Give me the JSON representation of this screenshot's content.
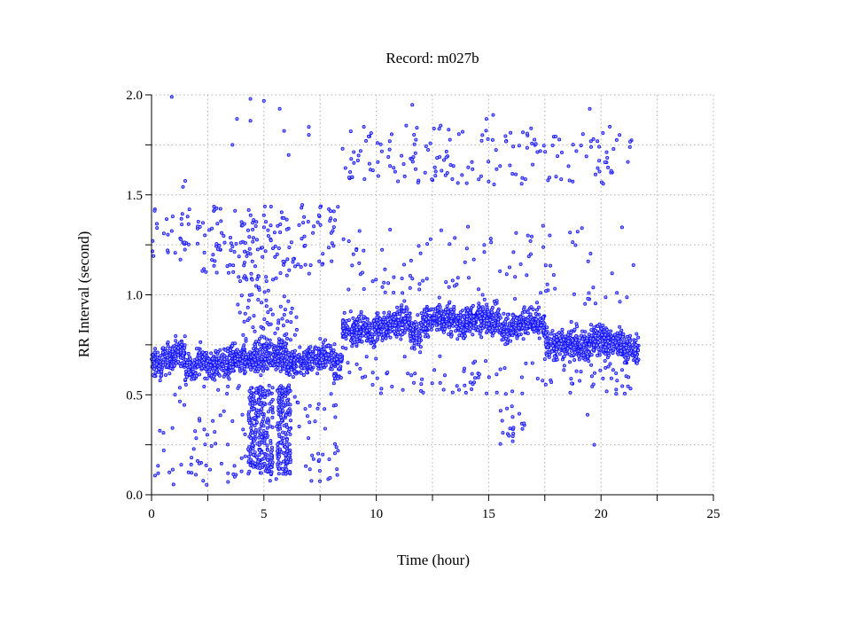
{
  "chart_data": {
    "type": "scatter",
    "title": "Record:  m027b",
    "xlabel": "Time (hour)",
    "ylabel": "RR Interval (second)",
    "xlim": [
      0,
      25
    ],
    "ylim": [
      0,
      2.0
    ],
    "xticks": [
      0,
      5,
      10,
      15,
      20,
      25
    ],
    "xtick_labels": [
      "0",
      "5",
      "10",
      "15",
      "20",
      "25"
    ],
    "xminor_ticks": [
      2.5,
      7.5,
      12.5,
      17.5,
      22.5
    ],
    "yticks": [
      0,
      0.5,
      1.0,
      1.5,
      2.0
    ],
    "ytick_labels": [
      "0.0",
      "0.5",
      "1.0",
      "1.5",
      "2.0"
    ],
    "yminor_ticks": [
      0.25,
      0.75,
      1.25,
      1.75
    ],
    "grid": true,
    "marker": "circle",
    "series_color": "#0000ff",
    "baseline_bin_hours": 0.5,
    "baseline_mean_rr": [
      0.65,
      0.68,
      0.72,
      0.63,
      0.67,
      0.65,
      0.65,
      0.67,
      0.68,
      0.68,
      0.7,
      0.7,
      0.66,
      0.67,
      0.68,
      0.7,
      0.65,
      0.82,
      0.83,
      0.82,
      0.84,
      0.85,
      0.87,
      0.8,
      0.87,
      0.88,
      0.88,
      0.85,
      0.88,
      0.88,
      0.87,
      0.83,
      0.85,
      0.86,
      0.85,
      0.75,
      0.75,
      0.76,
      0.74,
      0.78,
      0.78,
      0.76,
      0.72,
      0.72
    ],
    "record_end_hour": 21.7,
    "outlier_clusters": [
      {
        "x": [
          0.0,
          1.8
        ],
        "y": [
          1.15,
          1.45
        ],
        "n": 30
      },
      {
        "x": [
          2.0,
          8.3
        ],
        "y": [
          1.1,
          1.45
        ],
        "n": 160
      },
      {
        "x": [
          0.0,
          8.3
        ],
        "y": [
          0.05,
          0.55
        ],
        "n": 120
      },
      {
        "x": [
          4.3,
          5.4
        ],
        "y": [
          0.1,
          0.55
        ],
        "n": 260
      },
      {
        "x": [
          5.6,
          6.2
        ],
        "y": [
          0.1,
          0.55
        ],
        "n": 160
      },
      {
        "x": [
          3.8,
          6.5
        ],
        "y": [
          0.75,
          1.1
        ],
        "n": 80
      },
      {
        "x": [
          8.5,
          21.5
        ],
        "y": [
          1.55,
          1.85
        ],
        "n": 170
      },
      {
        "x": [
          8.5,
          21.5
        ],
        "y": [
          0.95,
          1.35
        ],
        "n": 110
      },
      {
        "x": [
          8.5,
          21.5
        ],
        "y": [
          0.5,
          0.7
        ],
        "n": 110
      },
      {
        "x": [
          15.5,
          16.6
        ],
        "y": [
          0.25,
          0.5
        ],
        "n": 20
      }
    ],
    "outlier_points": [
      [
        0.9,
        1.99
      ],
      [
        4.4,
        1.98
      ],
      [
        5.0,
        1.97
      ],
      [
        3.8,
        1.88
      ],
      [
        4.4,
        1.87
      ],
      [
        5.7,
        1.93
      ],
      [
        5.9,
        1.82
      ],
      [
        7.0,
        1.84
      ],
      [
        7.0,
        1.8
      ],
      [
        3.6,
        1.75
      ],
      [
        6.1,
        1.7
      ],
      [
        1.5,
        1.57
      ],
      [
        1.4,
        1.54
      ],
      [
        11.6,
        1.95
      ],
      [
        15.2,
        1.9
      ],
      [
        19.5,
        1.93
      ],
      [
        14.9,
        1.88
      ],
      [
        12.8,
        1.83
      ],
      [
        2.3,
        0.07
      ],
      [
        19.7,
        0.25
      ],
      [
        19.4,
        0.4
      ]
    ]
  }
}
